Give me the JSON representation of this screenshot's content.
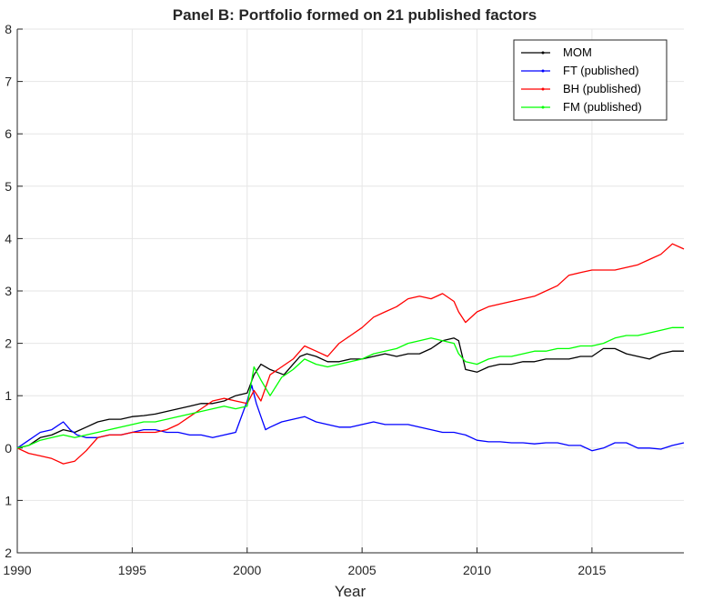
{
  "chart_data": {
    "type": "line",
    "title": "Panel B: Portfolio formed on 21 published factors",
    "xlabel": "Year",
    "ylabel": "",
    "xlim": [
      1990,
      2019
    ],
    "ylim": [
      -2,
      8
    ],
    "xticks": [
      1990,
      1995,
      2000,
      2005,
      2010,
      2015
    ],
    "xtick_labels": [
      "1990",
      "1995",
      "2000",
      "2005",
      "2010",
      "2015"
    ],
    "yticks": [
      -2,
      -1,
      0,
      1,
      2,
      3,
      4,
      5,
      6,
      7,
      8
    ],
    "ytick_labels": [
      "2",
      "1",
      "0",
      "1",
      "2",
      "3",
      "4",
      "5",
      "6",
      "7",
      "8"
    ],
    "grid": true,
    "legend_position": "top-right",
    "series": [
      {
        "name": "MOM",
        "color": "#000000",
        "x": [
          1990,
          1990.5,
          1991,
          1991.5,
          1992,
          1992.5,
          1993,
          1993.5,
          1994,
          1994.5,
          1995,
          1995.5,
          1996,
          1996.5,
          1997,
          1997.5,
          1998,
          1998.5,
          1999,
          1999.5,
          2000,
          2000.3,
          2000.6,
          2001,
          2001.3,
          2001.6,
          2002,
          2002.3,
          2002.6,
          2003,
          2003.5,
          2004,
          2004.5,
          2005,
          2005.5,
          2006,
          2006.5,
          2007,
          2007.5,
          2008,
          2008.5,
          2009,
          2009.2,
          2009.5,
          2010,
          2010.5,
          2011,
          2011.5,
          2012,
          2012.5,
          2013,
          2013.5,
          2014,
          2014.5,
          2015,
          2015.5,
          2016,
          2016.5,
          2017,
          2017.5,
          2018,
          2018.5,
          2019
        ],
        "values": [
          0.0,
          0.05,
          0.2,
          0.25,
          0.35,
          0.3,
          0.4,
          0.5,
          0.55,
          0.55,
          0.6,
          0.62,
          0.65,
          0.7,
          0.75,
          0.8,
          0.85,
          0.85,
          0.9,
          1.0,
          1.05,
          1.4,
          1.6,
          1.5,
          1.45,
          1.4,
          1.6,
          1.75,
          1.8,
          1.75,
          1.65,
          1.65,
          1.7,
          1.7,
          1.75,
          1.8,
          1.75,
          1.8,
          1.8,
          1.9,
          2.05,
          2.1,
          2.05,
          1.5,
          1.45,
          1.55,
          1.6,
          1.6,
          1.65,
          1.65,
          1.7,
          1.7,
          1.7,
          1.75,
          1.75,
          1.9,
          1.9,
          1.8,
          1.75,
          1.7,
          1.8,
          1.85,
          1.85
        ]
      },
      {
        "name": "FT (published)",
        "color": "#0000ff",
        "x": [
          1990,
          1990.5,
          1991,
          1991.5,
          1992,
          1992.3,
          1992.6,
          1993,
          1993.5,
          1994,
          1994.5,
          1995,
          1995.5,
          1996,
          1996.5,
          1997,
          1997.5,
          1998,
          1998.5,
          1999,
          1999.5,
          2000,
          2000.2,
          2000.4,
          2000.6,
          2000.8,
          2001,
          2001.5,
          2002,
          2002.5,
          2003,
          2003.5,
          2004,
          2004.5,
          2005,
          2005.5,
          2006,
          2006.5,
          2007,
          2007.5,
          2008,
          2008.5,
          2009,
          2009.5,
          2010,
          2010.5,
          2011,
          2011.5,
          2012,
          2012.5,
          2013,
          2013.5,
          2014,
          2014.5,
          2015,
          2015.5,
          2016,
          2016.5,
          2017,
          2017.5,
          2018,
          2018.5,
          2019
        ],
        "values": [
          0.0,
          0.15,
          0.3,
          0.35,
          0.5,
          0.35,
          0.25,
          0.2,
          0.2,
          0.25,
          0.25,
          0.3,
          0.35,
          0.35,
          0.3,
          0.3,
          0.25,
          0.25,
          0.2,
          0.25,
          0.3,
          0.9,
          1.2,
          0.85,
          0.6,
          0.35,
          0.4,
          0.5,
          0.55,
          0.6,
          0.5,
          0.45,
          0.4,
          0.4,
          0.45,
          0.5,
          0.45,
          0.45,
          0.45,
          0.4,
          0.35,
          0.3,
          0.3,
          0.25,
          0.15,
          0.12,
          0.12,
          0.1,
          0.1,
          0.08,
          0.1,
          0.1,
          0.05,
          0.05,
          -0.05,
          0.0,
          0.1,
          0.1,
          0.0,
          0.0,
          -0.02,
          0.05,
          0.1
        ]
      },
      {
        "name": "BH (published)",
        "color": "#ff0000",
        "x": [
          1990,
          1990.5,
          1991,
          1991.5,
          1992,
          1992.5,
          1993,
          1993.5,
          1994,
          1994.5,
          1995,
          1995.5,
          1996,
          1996.5,
          1997,
          1997.5,
          1998,
          1998.5,
          1999,
          1999.5,
          2000,
          2000.3,
          2000.6,
          2001,
          2001.5,
          2002,
          2002.5,
          2003,
          2003.5,
          2004,
          2004.5,
          2005,
          2005.5,
          2006,
          2006.5,
          2007,
          2007.5,
          2008,
          2008.5,
          2009,
          2009.2,
          2009.5,
          2010,
          2010.5,
          2011,
          2011.5,
          2012,
          2012.5,
          2013,
          2013.5,
          2014,
          2014.5,
          2015,
          2015.5,
          2016,
          2016.5,
          2017,
          2017.5,
          2018,
          2018.5,
          2019
        ],
        "values": [
          0.0,
          -0.1,
          -0.15,
          -0.2,
          -0.3,
          -0.25,
          -0.05,
          0.2,
          0.25,
          0.25,
          0.3,
          0.3,
          0.3,
          0.35,
          0.45,
          0.6,
          0.75,
          0.9,
          0.95,
          0.9,
          0.85,
          1.1,
          0.9,
          1.4,
          1.55,
          1.7,
          1.95,
          1.85,
          1.75,
          2.0,
          2.15,
          2.3,
          2.5,
          2.6,
          2.7,
          2.85,
          2.9,
          2.85,
          2.95,
          2.8,
          2.6,
          2.4,
          2.6,
          2.7,
          2.75,
          2.8,
          2.85,
          2.9,
          3.0,
          3.1,
          3.3,
          3.35,
          3.4,
          3.4,
          3.4,
          3.45,
          3.5,
          3.6,
          3.7,
          3.9,
          3.8
        ]
      },
      {
        "name": "FM (published)",
        "color": "#00ff00",
        "x": [
          1990,
          1990.5,
          1991,
          1991.5,
          1992,
          1992.5,
          1993,
          1993.5,
          1994,
          1994.5,
          1995,
          1995.5,
          1996,
          1996.5,
          1997,
          1997.5,
          1998,
          1998.5,
          1999,
          1999.5,
          2000,
          2000.3,
          2000.6,
          2001,
          2001.5,
          2002,
          2002.5,
          2003,
          2003.5,
          2004,
          2004.5,
          2005,
          2005.5,
          2006,
          2006.5,
          2007,
          2007.5,
          2008,
          2008.5,
          2009,
          2009.2,
          2009.5,
          2010,
          2010.5,
          2011,
          2011.5,
          2012,
          2012.5,
          2013,
          2013.5,
          2014,
          2014.5,
          2015,
          2015.5,
          2016,
          2016.5,
          2017,
          2017.5,
          2018,
          2018.5,
          2019
        ],
        "values": [
          0.0,
          0.05,
          0.15,
          0.2,
          0.25,
          0.2,
          0.25,
          0.3,
          0.35,
          0.4,
          0.45,
          0.5,
          0.5,
          0.55,
          0.6,
          0.65,
          0.7,
          0.75,
          0.8,
          0.75,
          0.8,
          1.55,
          1.3,
          1.0,
          1.35,
          1.5,
          1.7,
          1.6,
          1.55,
          1.6,
          1.65,
          1.7,
          1.8,
          1.85,
          1.9,
          2.0,
          2.05,
          2.1,
          2.05,
          2.0,
          1.8,
          1.65,
          1.6,
          1.7,
          1.75,
          1.75,
          1.8,
          1.85,
          1.85,
          1.9,
          1.9,
          1.95,
          1.95,
          2.0,
          2.1,
          2.15,
          2.15,
          2.2,
          2.25,
          2.3,
          2.3
        ]
      }
    ]
  }
}
